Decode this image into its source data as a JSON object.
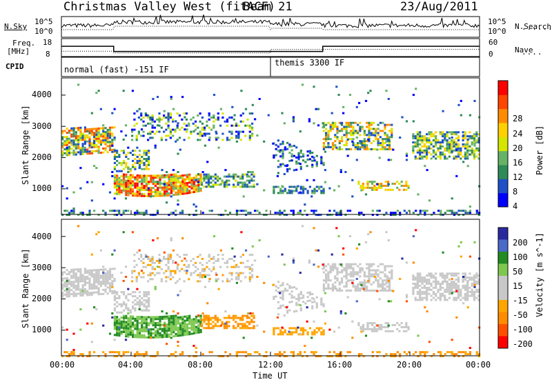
{
  "header": {
    "station": "Christmas Valley West (fitACF)",
    "beam": "Beam 21",
    "date": "23/Aug/2011"
  },
  "colors": {
    "power_scale": [
      "#0000ff",
      "#1e50c8",
      "#2e8b57",
      "#66b266",
      "#d4e600",
      "#ffd000",
      "#ff8c00",
      "#ff4500",
      "#ff0000"
    ],
    "velocity_scale": [
      "#2a2aa0",
      "#4a6ac8",
      "#228b22",
      "#7ec850",
      "#c8c8c8",
      "#c8c8c8",
      "#ffa500",
      "#ff8c00",
      "#ff5000",
      "#ff0000"
    ]
  },
  "chart_data": [
    {
      "type": "line",
      "panel": "noise",
      "left_labels": [
        "N.Sky"
      ],
      "left_ticks": [
        "10^5",
        "10^0"
      ],
      "right_labels": [
        "N.Search"
      ],
      "right_ticks": [
        "10^5",
        "10^0"
      ],
      "x": [
        "00:00",
        "04:00",
        "08:00",
        "12:00",
        "16:00",
        "20:00",
        "00:00"
      ]
    },
    {
      "type": "line",
      "panel": "frequency",
      "left_labels": [
        "Freq.",
        "[MHz]"
      ],
      "left_ticks": [
        "18",
        "8"
      ],
      "right_labels": [
        "Nave"
      ],
      "right_ticks": [
        "60",
        "0"
      ],
      "series": [
        {
          "name": "Freq.",
          "x": [
            0,
            3.0,
            3.0,
            12.0,
            12.0,
            15.0,
            15.0,
            24
          ],
          "values": [
            14,
            14,
            10,
            10,
            10,
            10,
            14,
            14
          ]
        },
        {
          "name": "Nave",
          "x": [
            0,
            3.0,
            3.0,
            12.0,
            12.0,
            24
          ],
          "values": [
            18,
            18,
            12,
            12,
            24,
            24
          ]
        }
      ]
    },
    {
      "type": "heatmap",
      "panel": "cpid",
      "label": "CPID",
      "modes": [
        {
          "name": "normal (fast) -151 IF",
          "start": "00:00"
        },
        {
          "name": "themis 3300 IF",
          "start": "12:00"
        }
      ]
    },
    {
      "type": "heatmap",
      "panel": "power",
      "ylabel": "Slant Range [km]",
      "yticks": [
        1000,
        2000,
        3000,
        4000
      ],
      "ylim": [
        180,
        4550
      ],
      "colorbar_label": "Power [dB]",
      "colorbar_ticks": [
        "4",
        "8",
        "12",
        "16",
        "20",
        "24",
        "28"
      ],
      "xlim": [
        0,
        24
      ]
    },
    {
      "type": "heatmap",
      "panel": "velocity",
      "ylabel": "Slant Range [km]",
      "yticks": [
        1000,
        2000,
        3000,
        4000
      ],
      "ylim": [
        180,
        4550
      ],
      "colorbar_label": "Velocity [m s^-1]",
      "colorbar_ticks": [
        "200",
        "100",
        "50",
        "15",
        "-15",
        "-50",
        "-100",
        "-200"
      ],
      "xlabel": "Time UT",
      "x_ticks": [
        "00:00",
        "04:00",
        "08:00",
        "12:00",
        "16:00",
        "20:00",
        "00:00"
      ],
      "xlim": [
        0,
        24
      ]
    }
  ]
}
